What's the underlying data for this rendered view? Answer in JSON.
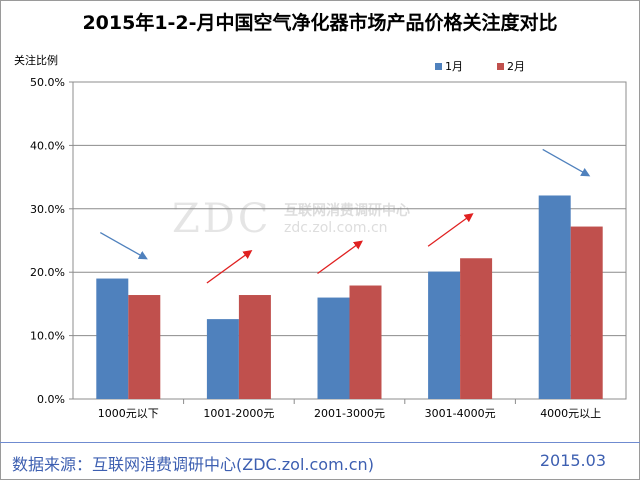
{
  "chart_data": {
    "type": "bar",
    "title": "2015年1-2-月中国空气净化器市场产品价格关注度对比",
    "ylabel": "关注比例",
    "xlabel": "",
    "categories": [
      "1000元以下",
      "1001-2000元",
      "2001-3000元",
      "3001-4000元",
      "4000元以上"
    ],
    "series": [
      {
        "name": "1月",
        "color": "#4f81bd",
        "values": [
          19.0,
          12.6,
          16.0,
          20.1,
          32.1
        ]
      },
      {
        "name": "2月",
        "color": "#c0504d",
        "values": [
          16.4,
          16.4,
          17.9,
          22.2,
          27.2
        ]
      }
    ],
    "ylim": [
      0,
      50
    ],
    "yticks": [
      "0.0%",
      "10.0%",
      "20.0%",
      "30.0%",
      "40.0%",
      "50.0%"
    ],
    "ytick_values": [
      0,
      10,
      20,
      30,
      40,
      50
    ],
    "grid": true,
    "legend_position": "top-right",
    "trend_arrows": [
      {
        "category": "1000元以下",
        "direction": "down",
        "color": "#4f81bd"
      },
      {
        "category": "1001-2000元",
        "direction": "up",
        "color": "#e02020"
      },
      {
        "category": "2001-3000元",
        "direction": "up",
        "color": "#e02020"
      },
      {
        "category": "3001-4000元",
        "direction": "up",
        "color": "#e02020"
      },
      {
        "category": "4000元以上",
        "direction": "down",
        "color": "#4f81bd"
      }
    ]
  },
  "footer": {
    "source": "数据来源：互联网消费调研中心(ZDC.zol.com.cn)",
    "date": "2015.03"
  },
  "watermark": {
    "logo": "ZDC",
    "org": "互联网消费调研中心",
    "url": "zdc.zol.com.cn"
  }
}
